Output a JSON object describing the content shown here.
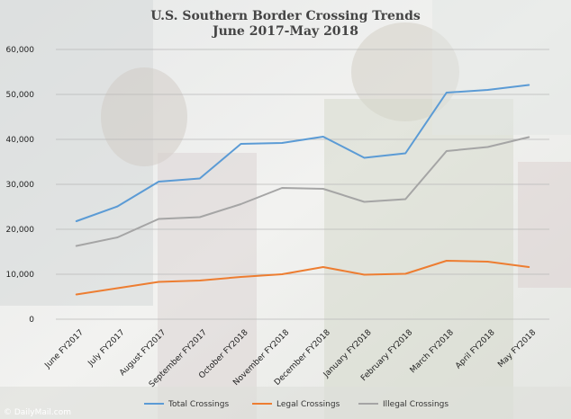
{
  "chart_data": {
    "type": "line",
    "title": "U.S. Southern Border Crossing Trends",
    "subtitle": "June 2017-May 2018",
    "categories": [
      "June FY2017",
      "July FY2017",
      "August FY2017",
      "September FY2017",
      "October FY2018",
      "November FY2018",
      "December FY2018",
      "January FY2018",
      "February FY2018",
      "March FY2018",
      "April FY2018",
      "May FY2018"
    ],
    "series": [
      {
        "name": "Total Crossings",
        "color": "#5b9bd5",
        "values": [
          21800,
          25100,
          30600,
          31300,
          39000,
          39200,
          40600,
          35900,
          36900,
          50400,
          51000,
          52100
        ]
      },
      {
        "name": "Legal Crossings",
        "color": "#ed7d31",
        "values": [
          5500,
          6900,
          8300,
          8600,
          9400,
          10000,
          11600,
          9900,
          10100,
          13000,
          12800,
          11600
        ]
      },
      {
        "name": "Illegal Crossings",
        "color": "#a5a5a5",
        "values": [
          16300,
          18200,
          22300,
          22700,
          25600,
          29200,
          29000,
          26100,
          26700,
          37400,
          38300,
          40500
        ]
      }
    ],
    "ylim": [
      0,
      60000
    ],
    "yticks": [
      "0",
      "10,000",
      "20,000",
      "30,000",
      "40,000",
      "50,000",
      "60,000"
    ],
    "ytick_values": [
      0,
      10000,
      20000,
      30000,
      40000,
      50000,
      60000
    ],
    "grid": true,
    "legend_position": "bottom",
    "xlabel": "",
    "ylabel": ""
  },
  "credit": "© DailyMail.com"
}
